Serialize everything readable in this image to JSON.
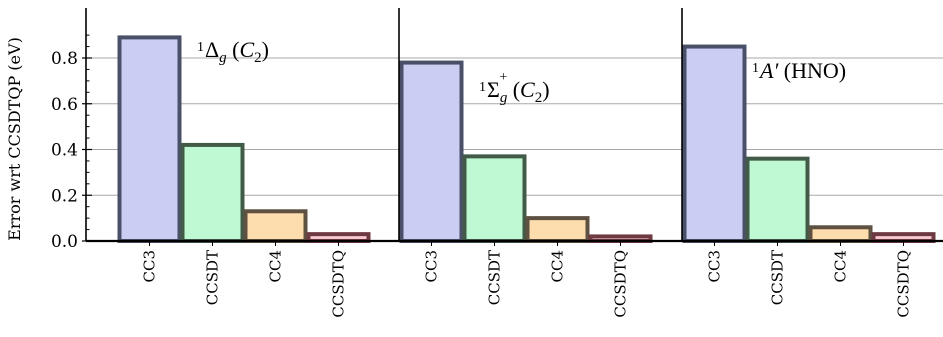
{
  "chart_data": {
    "type": "bar",
    "ylabel": "Error wrt CCSDTQP (eV)",
    "ylim": [
      0,
      0.93
    ],
    "yticks": [
      0.0,
      0.2,
      0.4,
      0.6,
      0.8
    ],
    "ytick_labels": [
      "0.0",
      "0.2",
      "0.4",
      "0.6",
      "0.8"
    ],
    "grid": "horizontal",
    "categories": [
      "CC3",
      "CCSDT",
      "CC4",
      "CCSDTQ"
    ],
    "colors": {
      "CC3": {
        "fill": "#c9cef2",
        "stroke": "#4a5068"
      },
      "CCSDT": {
        "fill": "#bff9d3",
        "stroke": "#425a48"
      },
      "CC4": {
        "fill": "#fddcad",
        "stroke": "#5e5141"
      },
      "CCSDTQ": {
        "fill": "#f8c9cf",
        "stroke": "#6e3a42"
      }
    },
    "panels": [
      {
        "label": {
          "sup": "1",
          "main": "Δ",
          "sub": "g",
          "rest": "(",
          "ital": "C",
          "isub": "2",
          "close": ")"
        },
        "values": [
          0.89,
          0.42,
          0.13,
          0.03
        ]
      },
      {
        "label": {
          "sup": "1",
          "main": "Σ",
          "sub": "g",
          "supplus": "+",
          "rest": "(",
          "ital": "C",
          "isub": "2",
          "close": ")"
        },
        "values": [
          0.78,
          0.37,
          0.1,
          0.02
        ]
      },
      {
        "label": {
          "sup": "1",
          "main": "A′",
          "rest": "(HNO)"
        },
        "values": [
          0.85,
          0.36,
          0.06,
          0.03
        ]
      }
    ]
  }
}
